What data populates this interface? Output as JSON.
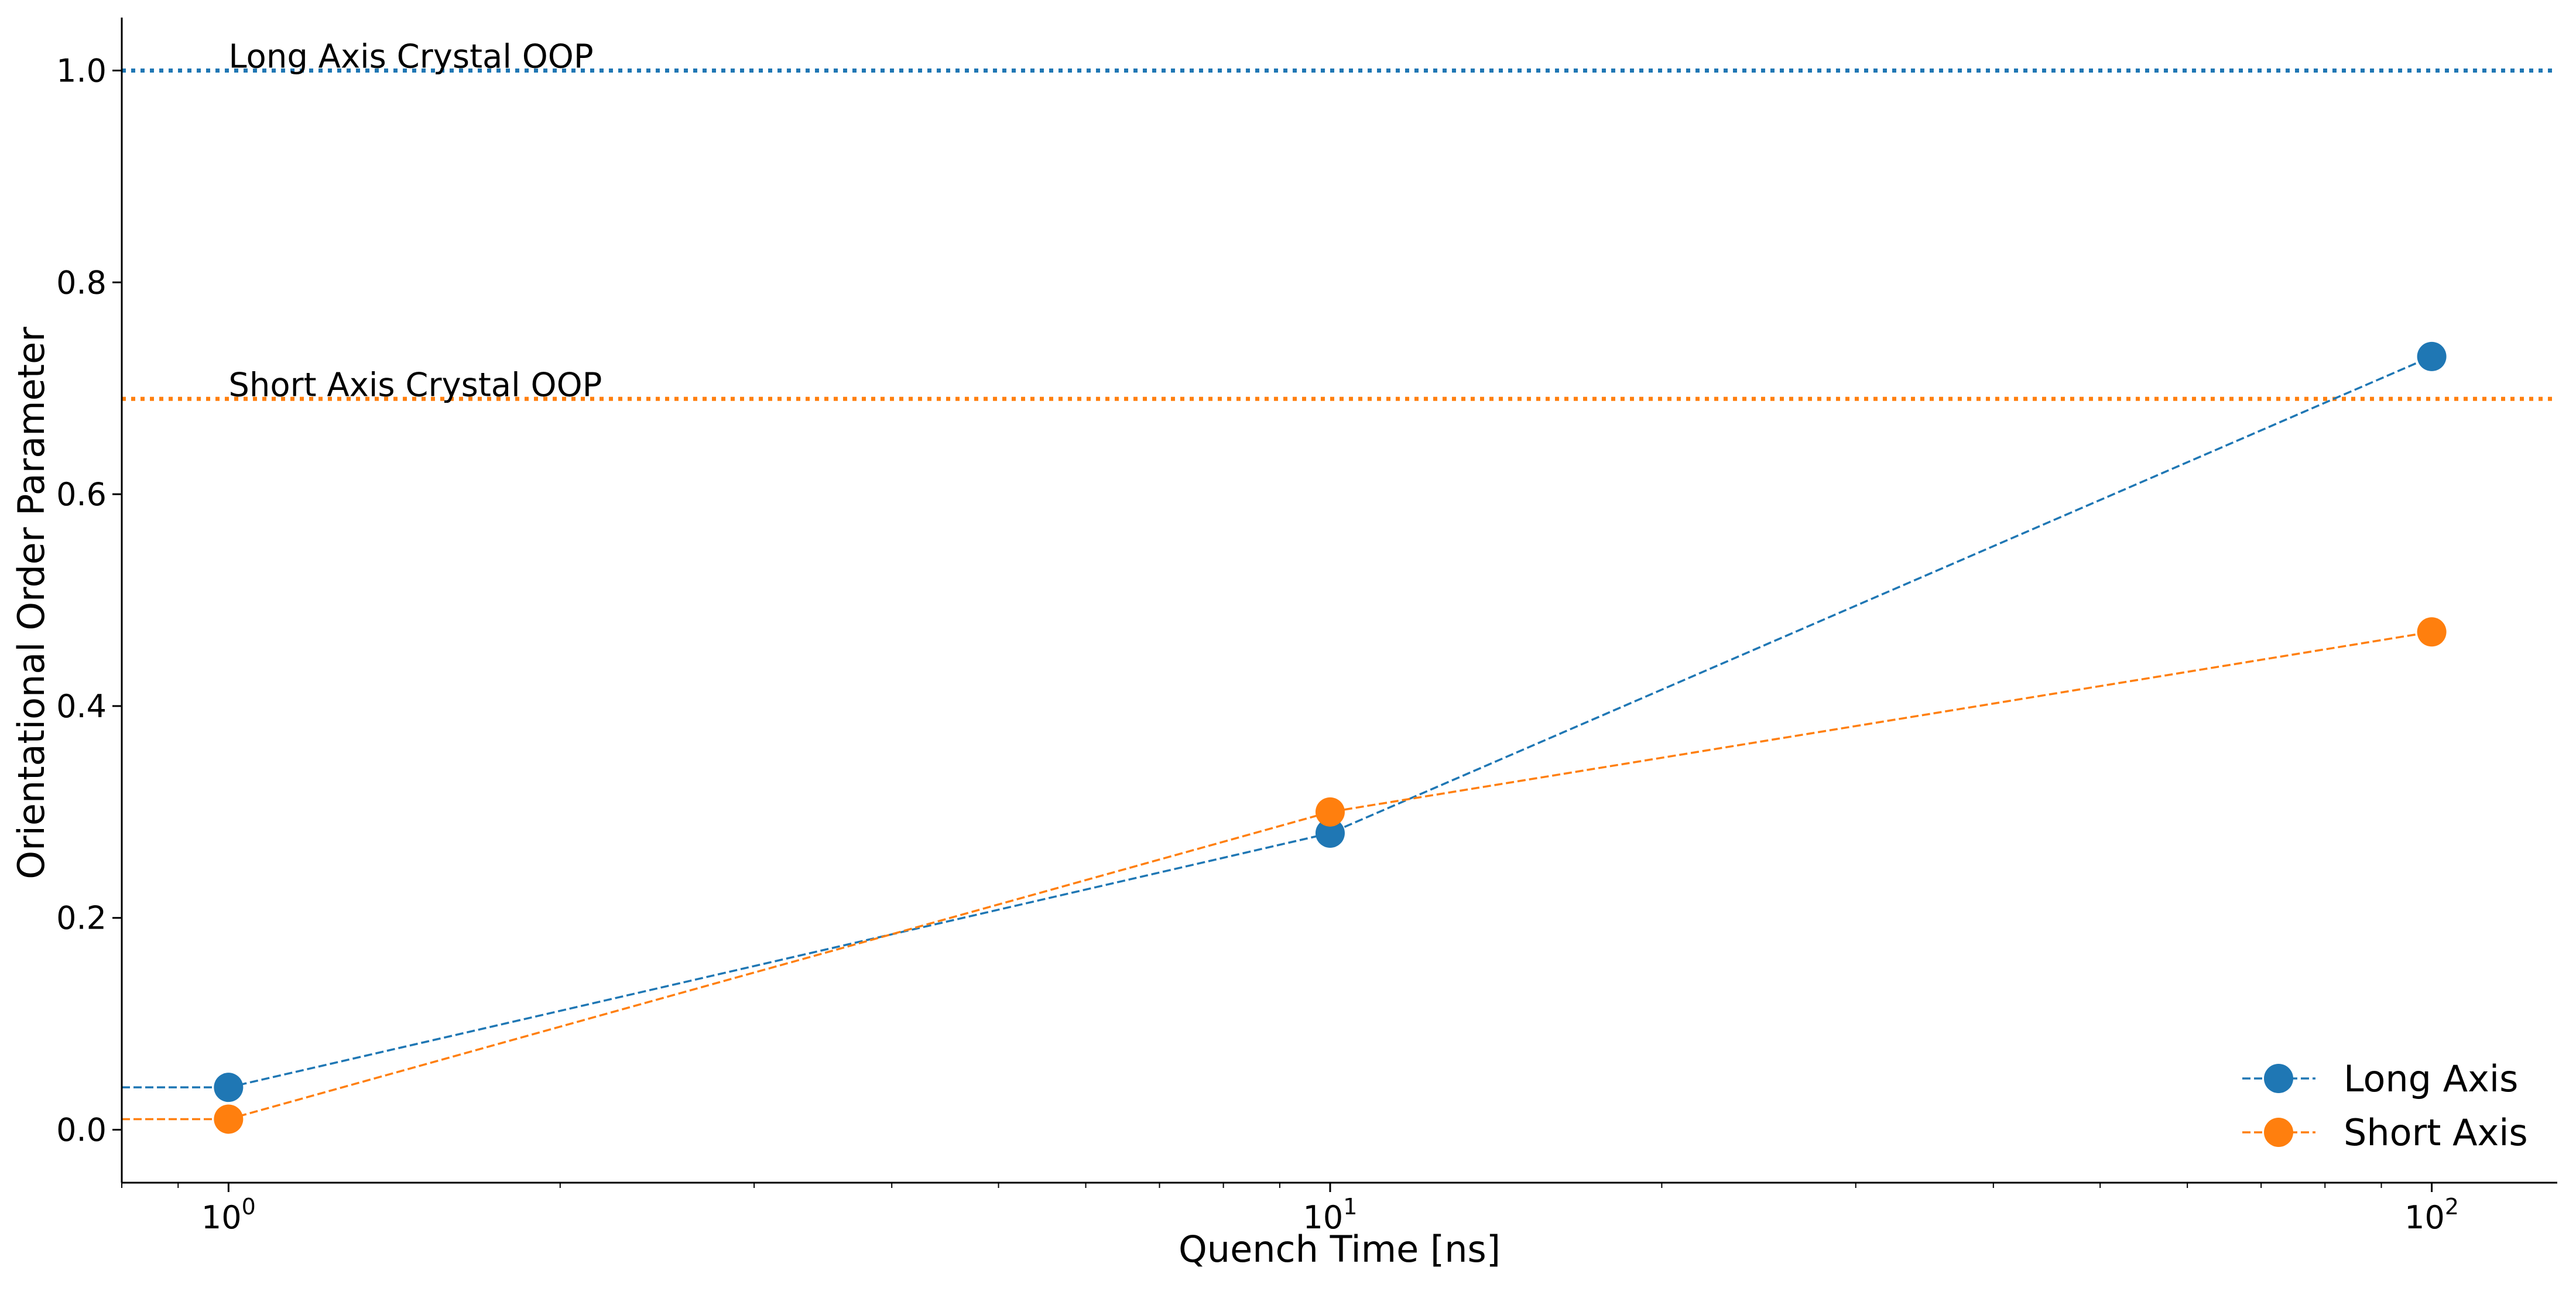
{
  "chart_data": {
    "type": "line",
    "title": "",
    "xlabel": "Quench Time [ns]",
    "ylabel": "Orientational Order Parameter",
    "x_scale": "log",
    "xlim": [
      0.8,
      130
    ],
    "ylim": [
      -0.05,
      1.05
    ],
    "x": [
      1,
      10,
      100
    ],
    "x_tick_labels": [
      {
        "value": 1,
        "base": "10",
        "exp": "0"
      },
      {
        "value": 10,
        "base": "10",
        "exp": "1"
      },
      {
        "value": 100,
        "base": "10",
        "exp": "2"
      }
    ],
    "y_ticks": [
      0.0,
      0.2,
      0.4,
      0.6,
      0.8,
      1.0
    ],
    "y_tick_labels": [
      "0.0",
      "0.2",
      "0.4",
      "0.6",
      "0.8",
      "1.0"
    ],
    "grid": false,
    "legend_position": "lower right",
    "series": [
      {
        "name": "Long Axis",
        "color": "#1f77b4",
        "line_style": "dashed",
        "marker": "circle",
        "y": [
          0.04,
          0.28,
          0.73
        ],
        "extend_left_from_first": true
      },
      {
        "name": "Short Axis",
        "color": "#ff7f0e",
        "line_style": "dashed",
        "marker": "circle",
        "y": [
          0.01,
          0.3,
          0.47
        ],
        "extend_left_from_first": true
      }
    ],
    "reference_lines": [
      {
        "label": "Long Axis Crystal OOP",
        "y": 1.0,
        "color": "#1f77b4",
        "line_style": "dotted"
      },
      {
        "label": "Short Axis Crystal OOP",
        "y": 0.69,
        "color": "#ff7f0e",
        "line_style": "dotted"
      }
    ]
  }
}
